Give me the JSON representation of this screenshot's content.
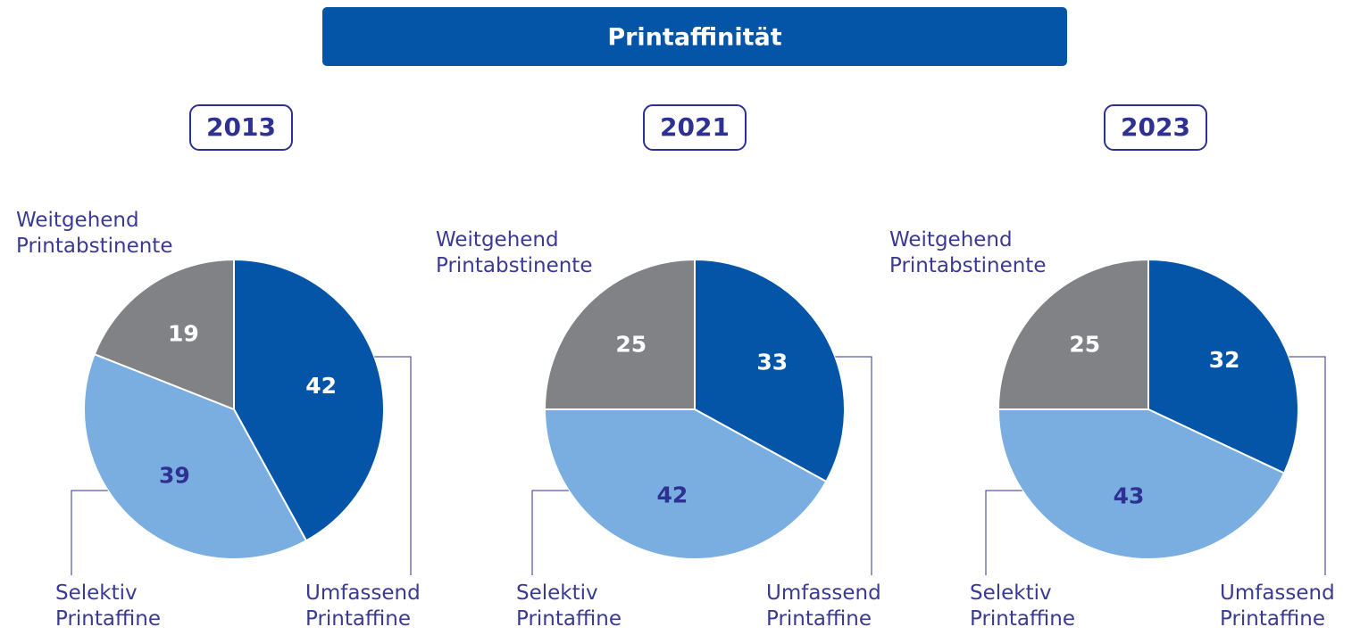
{
  "title": "Printaffinität",
  "chart_data": [
    {
      "type": "pie",
      "title": "2013",
      "categories": [
        "Umfassend\nPrintaffine",
        "Selektiv\nPrintaffine",
        "Weitgehend\nPrintabstinente"
      ],
      "values": [
        42,
        39,
        19
      ],
      "colors": [
        "#0455a8",
        "#7aaee0",
        "#808285"
      ]
    },
    {
      "type": "pie",
      "title": "2021",
      "categories": [
        "Umfassend\nPrintaffine",
        "Selektiv\nPrintaffine",
        "Weitgehend\nPrintabstinente"
      ],
      "values": [
        33,
        42,
        25
      ],
      "colors": [
        "#0455a8",
        "#7aaee0",
        "#808285"
      ]
    },
    {
      "type": "pie",
      "title": "2023",
      "categories": [
        "Umfassend\nPrintaffine",
        "Selektiv\nPrintaffine",
        "Weitgehend\nPrintabstinente"
      ],
      "values": [
        32,
        43,
        25
      ],
      "colors": [
        "#0455a8",
        "#7aaee0",
        "#808285"
      ]
    }
  ]
}
